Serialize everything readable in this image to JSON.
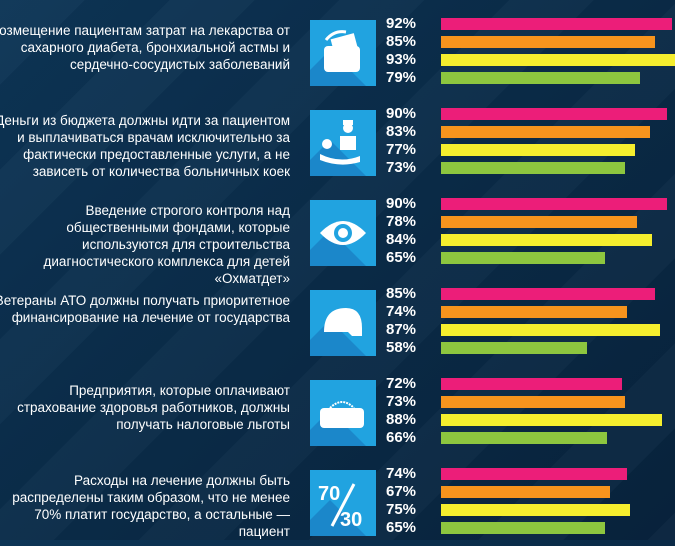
{
  "chart_data": {
    "type": "bar",
    "colors": [
      "#ec1e79",
      "#f7941d",
      "#f5ee2e",
      "#8dc63f"
    ],
    "xlim": [
      0,
      93
    ],
    "groups": [
      {
        "label": "Возмещение пациентам затрат на лекарства от сахарного диабета, бронхиальной астмы и сердечно-сосудистых заболеваний",
        "icon": "wallet-icon",
        "values": [
          92,
          85,
          93,
          79
        ]
      },
      {
        "label": "Деньги из бюджета должны идти за пациентом и выплачиваться врачам исключительно за фактически предоставленные услуги, а не зависеть от количества больничных коек",
        "icon": "doctor-patient-icon",
        "values": [
          90,
          83,
          77,
          73
        ]
      },
      {
        "label": "Введение строгого контроля над общественными фондами, которые используются для строительства диагностического комплекса для детей «Охматдет»",
        "icon": "eye-icon",
        "values": [
          90,
          78,
          84,
          65
        ]
      },
      {
        "label": "Ветераны АТО должны получать приоритетное финансирование на лечение от государства",
        "icon": "helmet-icon",
        "values": [
          85,
          74,
          87,
          58
        ]
      },
      {
        "label": "Предприятия, которые оплачивают страхование здоровья работников, должны получать налоговые льготы",
        "icon": "wallet-gear-icon",
        "values": [
          72,
          73,
          88,
          66
        ]
      },
      {
        "label": "Расходы на лечение должны быть распределены таким образом, что не менее 70% платит государство, а остальные — пациент",
        "icon": "ratio-icon",
        "icon_text": [
          "70",
          "30"
        ],
        "values": [
          74,
          67,
          75,
          65
        ]
      }
    ]
  }
}
